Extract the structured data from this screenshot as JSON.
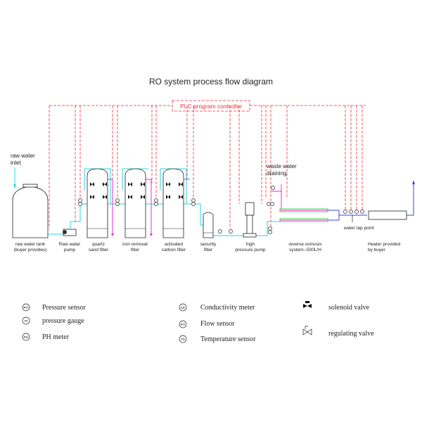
{
  "title": "RO system process flow diagram",
  "controller": "PLC program controller",
  "inlet_label": [
    "raw water",
    "inlet"
  ],
  "waste_label": [
    "waste water",
    "draining"
  ],
  "tap_label": "water tap point",
  "components": [
    {
      "lines": [
        "raw water tank",
        "(buyer provides)"
      ]
    },
    {
      "lines": [
        "Raw water",
        "pump"
      ]
    },
    {
      "lines": [
        "quartz",
        "sand filter"
      ]
    },
    {
      "lines": [
        "iron removal",
        "filter"
      ]
    },
    {
      "lines": [
        "activated",
        "carbon filter"
      ]
    },
    {
      "lines": [
        "security",
        "filter"
      ]
    },
    {
      "lines": [
        "high",
        "pressure pump"
      ]
    },
    {
      "lines": [
        "reverse osmosis",
        "system--500L/H"
      ]
    },
    {
      "lines": [
        "Heater provided",
        "by buyer"
      ]
    }
  ],
  "legend": [
    {
      "symbol": "PIT",
      "label": "Pressure sensor"
    },
    {
      "symbol": "PI",
      "label": "pressure gauge"
    },
    {
      "symbol": "PH",
      "label": "PH meter"
    },
    {
      "symbol": "CE",
      "label": "Conductivity meter"
    },
    {
      "symbol": "FIT",
      "label": "Flow sensor"
    },
    {
      "symbol": "TS",
      "label": "Temperature sensor"
    },
    {
      "symbol": "solenoid-valve-icon",
      "label": "solenoid valve"
    },
    {
      "symbol": "regulating-valve-icon",
      "label": "regulating valve"
    }
  ],
  "colors": {
    "control": "#e8313c",
    "raw_water": "#27d3e0",
    "backwash": "#e52fd6",
    "product": "#3b46e0",
    "membrane": "#3fd64a"
  }
}
